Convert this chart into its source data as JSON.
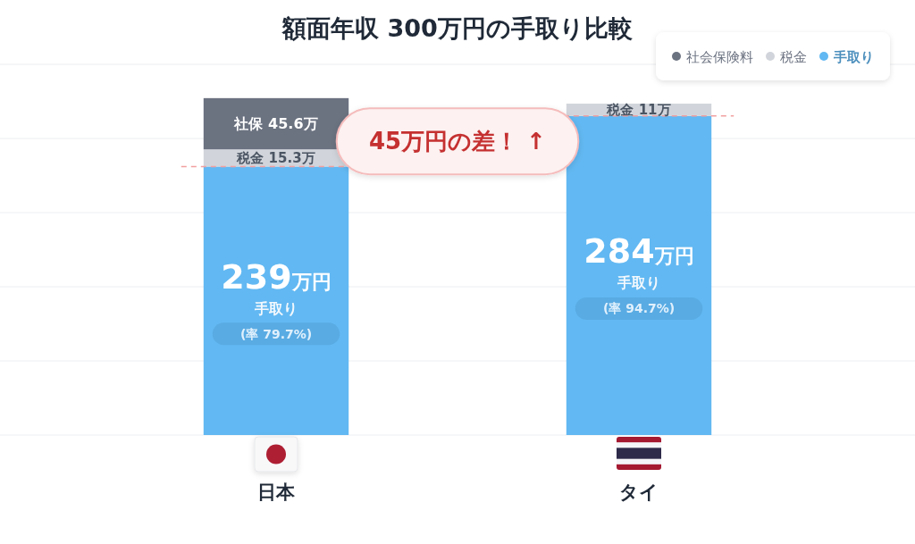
{
  "chart_data": {
    "type": "bar",
    "title": "額面年収 300万円の手取り比較",
    "categories": [
      "日本",
      "タイ"
    ],
    "stacked": true,
    "series": [
      {
        "name": "手取り",
        "color": "#62b8f2",
        "values": [
          239,
          284
        ],
        "value_labels": [
          "239万円",
          "284万円"
        ]
      },
      {
        "name": "税金",
        "color": "#d1d5db",
        "values": [
          15.3,
          11
        ],
        "value_labels": [
          "税金 15.3万",
          "税金 11万"
        ]
      },
      {
        "name": "社会保険料",
        "color": "#6b7280",
        "values": [
          45.6,
          null
        ],
        "value_labels": [
          "社保 45.6万",
          null
        ]
      }
    ],
    "ylim": [
      0,
      330
    ],
    "yticks": [
      {
        "value": 0,
        "label": null
      },
      {
        "value": 66,
        "label": null
      },
      {
        "value": 132,
        "label": null
      },
      {
        "value": 198,
        "label": null
      },
      {
        "value": 264,
        "label": null
      },
      {
        "value": 330,
        "label": null
      }
    ],
    "grid": "y",
    "tick_labels": "x",
    "legend": "top right",
    "ref_lines": [
      {
        "axis": "y",
        "value": 239,
        "color": "#f2a0a0",
        "line_style": "dashed"
      },
      {
        "axis": "y",
        "value": 284,
        "color": "#f2a0a0",
        "line_style": "dashed"
      }
    ],
    "annotations": [
      "45万円の差！ ↑",
      "(率 79.7%)",
      "(率 94.7%)"
    ]
  }
}
